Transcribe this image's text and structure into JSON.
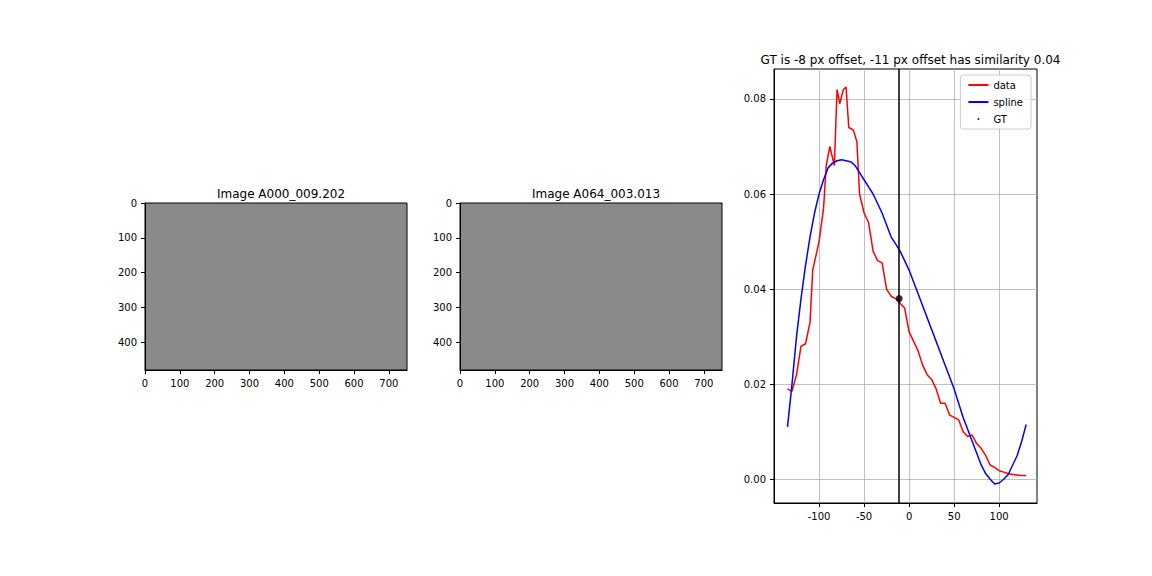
{
  "chart_data": [
    {
      "type": "image",
      "title": "Image A000_009.202",
      "xlim": [
        0,
        752
      ],
      "xticks": [
        0,
        100,
        200,
        300,
        400,
        500,
        600,
        700
      ],
      "ylim": [
        480,
        0
      ],
      "yticks": [
        0,
        100,
        200,
        300,
        400
      ]
    },
    {
      "type": "image",
      "title": "Image A064_003.013",
      "xlim": [
        0,
        752
      ],
      "xticks": [
        0,
        100,
        200,
        300,
        400,
        500,
        600,
        700
      ],
      "ylim": [
        480,
        0
      ],
      "yticks": [
        0,
        100,
        200,
        300,
        400
      ]
    },
    {
      "type": "line",
      "title": "GT is -8 px offset, -11 px offset has similarity 0.04",
      "xlim": [
        -150,
        142
      ],
      "xticks": [
        -100,
        -50,
        0,
        50,
        100
      ],
      "ylim": [
        -0.005,
        0.0863
      ],
      "yticks": [
        {
          "value": 0,
          "label": "0.00"
        },
        0.02,
        0.04,
        0.06,
        0.08
      ],
      "grid": true,
      "legend": "upper right",
      "vline": -11,
      "series": [
        {
          "name": "data",
          "color": "#ff0000",
          "type": "line",
          "x": [
            -135,
            -130,
            -125,
            -120,
            -115,
            -110,
            -107,
            -100,
            -95,
            -92,
            -88,
            -83,
            -80,
            -77,
            -73,
            -70,
            -67,
            -62,
            -58,
            -55,
            -50,
            -45,
            -40,
            -35,
            -30,
            -25,
            -20,
            -15,
            -10,
            -5,
            0,
            5,
            10,
            15,
            20,
            25,
            30,
            35,
            40,
            45,
            50,
            55,
            60,
            65,
            70,
            75,
            80,
            85,
            90,
            95,
            100,
            105,
            110,
            115,
            120,
            125,
            130
          ],
          "values": [
            0.019,
            0.0185,
            0.022,
            0.028,
            0.0285,
            0.033,
            0.044,
            0.05,
            0.057,
            0.066,
            0.07,
            0.066,
            0.082,
            0.079,
            0.082,
            0.0825,
            0.074,
            0.0735,
            0.071,
            0.06,
            0.056,
            0.054,
            0.048,
            0.046,
            0.0455,
            0.04,
            0.0385,
            0.038,
            0.037,
            0.036,
            0.031,
            0.029,
            0.027,
            0.024,
            0.022,
            0.021,
            0.019,
            0.016,
            0.016,
            0.0135,
            0.013,
            0.0125,
            0.01,
            0.009,
            0.0093,
            0.0075,
            0.0065,
            0.005,
            0.003,
            0.0025,
            0.0018,
            0.0015,
            0.0012,
            0.001,
            0.0009,
            0.0008,
            0.0008
          ]
        },
        {
          "name": "spline",
          "color": "#0000ff",
          "type": "line",
          "x": [
            -135,
            -130,
            -125,
            -120,
            -115,
            -110,
            -105,
            -100,
            -95,
            -90,
            -85,
            -80,
            -75,
            -70,
            -65,
            -60,
            -55,
            -50,
            -45,
            -40,
            -35,
            -30,
            -25,
            -20,
            -15,
            -10,
            -5,
            0,
            5,
            10,
            15,
            20,
            25,
            30,
            35,
            40,
            45,
            50,
            55,
            60,
            65,
            70,
            75,
            80,
            85,
            90,
            95,
            100,
            105,
            110,
            115,
            120,
            125,
            130
          ],
          "values": [
            0.011,
            0.02,
            0.03,
            0.038,
            0.045,
            0.051,
            0.056,
            0.06,
            0.063,
            0.0655,
            0.0665,
            0.067,
            0.0672,
            0.067,
            0.0668,
            0.066,
            0.0645,
            0.063,
            0.0615,
            0.06,
            0.058,
            0.056,
            0.0535,
            0.051,
            0.0495,
            0.048,
            0.046,
            0.044,
            0.0415,
            0.039,
            0.0365,
            0.034,
            0.0315,
            0.029,
            0.0265,
            0.024,
            0.0215,
            0.019,
            0.016,
            0.013,
            0.0105,
            0.008,
            0.0055,
            0.003,
            0.0012,
            0.0,
            -0.001,
            -0.0008,
            0.0,
            0.001,
            0.003,
            0.005,
            0.008,
            0.0115
          ]
        },
        {
          "name": "GT",
          "color": "#000000",
          "type": "scatter",
          "marker": "circle",
          "x": [
            -11
          ],
          "values": [
            0.038
          ]
        }
      ]
    }
  ]
}
